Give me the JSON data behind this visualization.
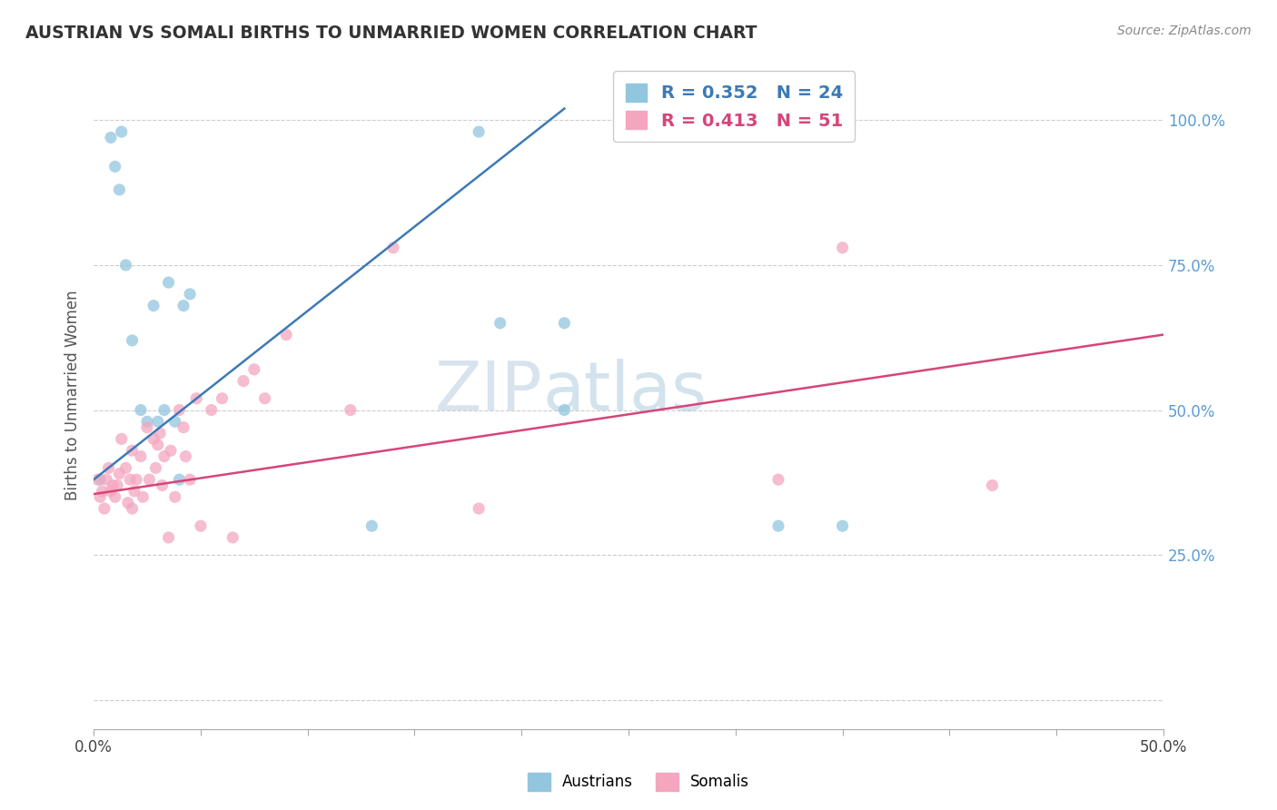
{
  "title": "AUSTRIAN VS SOMALI BIRTHS TO UNMARRIED WOMEN CORRELATION CHART",
  "source": "Source: ZipAtlas.com",
  "ylabel": "Births to Unmarried Women",
  "xlim": [
    0.0,
    0.5
  ],
  "ylim": [
    -0.05,
    1.1
  ],
  "ytick_positions": [
    0.0,
    0.25,
    0.5,
    0.75,
    1.0
  ],
  "ytick_labels": [
    "",
    "25.0%",
    "50.0%",
    "75.0%",
    "100.0%"
  ],
  "xtick_positions": [
    0.0,
    0.05,
    0.1,
    0.15,
    0.2,
    0.25,
    0.3,
    0.35,
    0.4,
    0.45,
    0.5
  ],
  "xtick_labels_show": {
    "0.0": "0.0%",
    "0.5": "50.0%"
  },
  "austrians": {
    "color": "#92c5de",
    "line_color": "#3d7ab5",
    "R": 0.352,
    "N": 24,
    "x": [
      0.003,
      0.008,
      0.01,
      0.012,
      0.013,
      0.015,
      0.018,
      0.022,
      0.025,
      0.028,
      0.03,
      0.033,
      0.035,
      0.038,
      0.04,
      0.042,
      0.045,
      0.13,
      0.18,
      0.19,
      0.22,
      0.22,
      0.32,
      0.35
    ],
    "y": [
      0.38,
      0.97,
      0.92,
      0.88,
      0.98,
      0.75,
      0.62,
      0.5,
      0.48,
      0.68,
      0.48,
      0.5,
      0.72,
      0.48,
      0.38,
      0.68,
      0.7,
      0.3,
      0.98,
      0.65,
      0.65,
      0.5,
      0.3,
      0.3
    ],
    "line_x": [
      0.0,
      0.22
    ],
    "line_y": [
      0.38,
      1.02
    ]
  },
  "somalis": {
    "color": "#f4a6bf",
    "line_color": "#d6457a",
    "R": 0.413,
    "N": 51,
    "x": [
      0.002,
      0.003,
      0.004,
      0.005,
      0.006,
      0.007,
      0.008,
      0.009,
      0.01,
      0.011,
      0.012,
      0.013,
      0.015,
      0.016,
      0.017,
      0.018,
      0.018,
      0.019,
      0.02,
      0.022,
      0.023,
      0.025,
      0.026,
      0.028,
      0.029,
      0.03,
      0.031,
      0.032,
      0.033,
      0.035,
      0.036,
      0.038,
      0.04,
      0.042,
      0.043,
      0.045,
      0.048,
      0.05,
      0.055,
      0.06,
      0.065,
      0.07,
      0.075,
      0.08,
      0.09,
      0.12,
      0.14,
      0.18,
      0.32,
      0.35,
      0.42
    ],
    "y": [
      0.38,
      0.35,
      0.36,
      0.33,
      0.38,
      0.4,
      0.36,
      0.37,
      0.35,
      0.37,
      0.39,
      0.45,
      0.4,
      0.34,
      0.38,
      0.33,
      0.43,
      0.36,
      0.38,
      0.42,
      0.35,
      0.47,
      0.38,
      0.45,
      0.4,
      0.44,
      0.46,
      0.37,
      0.42,
      0.28,
      0.43,
      0.35,
      0.5,
      0.47,
      0.42,
      0.38,
      0.52,
      0.3,
      0.5,
      0.52,
      0.28,
      0.55,
      0.57,
      0.52,
      0.63,
      0.5,
      0.78,
      0.33,
      0.38,
      0.78,
      0.37
    ],
    "line_x": [
      0.0,
      0.5
    ],
    "line_y": [
      0.355,
      0.63
    ]
  },
  "background_color": "#ffffff",
  "grid_color": "#cccccc",
  "title_color": "#333333",
  "watermark_zip": "ZIP",
  "watermark_atlas": "atlas",
  "marker_size": 90
}
